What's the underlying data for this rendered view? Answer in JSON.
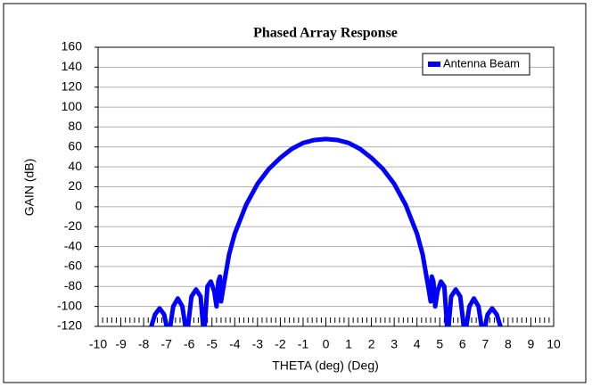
{
  "chart_data": {
    "type": "line",
    "title": "Phased Array Response",
    "x_label": "THETA (deg) (Deg)",
    "y_label": "GAIN (dB)",
    "x": [
      -7.8,
      -7.5,
      -7.3,
      -7.1,
      -6.9,
      -6.7,
      -6.5,
      -6.3,
      -6.1,
      -5.9,
      -5.7,
      -5.5,
      -5.35,
      -5.2,
      -5.05,
      -4.9,
      -4.8,
      -4.72,
      -4.65,
      -4.6,
      -4.5,
      -4.25,
      -4,
      -3.5,
      -3,
      -2.5,
      -2,
      -1.5,
      -1,
      -0.5,
      0,
      0.5,
      1,
      1.5,
      2,
      2.5,
      3,
      3.5,
      4,
      4.25,
      4.5,
      4.6,
      4.65,
      4.72,
      4.8,
      4.9,
      5.05,
      5.2,
      5.35,
      5.5,
      5.7,
      5.9,
      6.1,
      6.3,
      6.5,
      6.7,
      6.9,
      7.1,
      7.3,
      7.5,
      7.8
    ],
    "series": [
      {
        "name": "Antenna Beam",
        "color": "#0000ff",
        "values": [
          -130,
          -108,
          -102,
          -108,
          -130,
          -100,
          -92,
          -100,
          -130,
          -90,
          -83,
          -90,
          -130,
          -80,
          -75,
          -85,
          -100,
          -75,
          -70,
          -95,
          -81,
          -48,
          -27,
          2,
          23,
          38,
          49,
          58,
          64,
          67,
          68,
          67,
          64,
          58,
          49,
          38,
          23,
          2,
          -27,
          -48,
          -81,
          -95,
          -70,
          -75,
          -100,
          -85,
          -75,
          -80,
          -130,
          -90,
          -83,
          -90,
          -130,
          -100,
          -92,
          -100,
          -130,
          -108,
          -102,
          -108,
          -130
        ]
      }
    ],
    "xlim": [
      -10,
      10
    ],
    "xticks": [
      -10,
      -9,
      -8,
      -7,
      -6,
      -5,
      -4,
      -3,
      -2,
      -1,
      0,
      1,
      2,
      3,
      4,
      5,
      6,
      7,
      8,
      9,
      10
    ],
    "ylim": [
      -120,
      160
    ],
    "yticks": [
      -120,
      -100,
      -80,
      -60,
      -40,
      -20,
      0,
      20,
      40,
      60,
      80,
      100,
      120,
      140,
      160
    ],
    "grid": true,
    "legend": "upper right"
  }
}
